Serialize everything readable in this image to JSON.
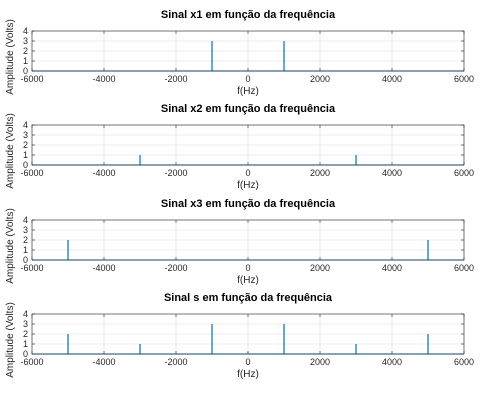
{
  "chart_data": [
    {
      "type": "stem",
      "title": "Sinal x1 em função da frequência",
      "xlabel": "f(Hz)",
      "ylabel": "Amplitude (Volts)",
      "xlim": [
        -6000,
        6000
      ],
      "ylim": [
        0,
        4
      ],
      "xticks": [
        "-6000",
        "-4000",
        "-2000",
        "0",
        "2000",
        "4000",
        "6000"
      ],
      "yticks": [
        "0",
        "1",
        "2",
        "3",
        "4"
      ],
      "grid": true,
      "color": "#0072bd",
      "x": [
        -1000,
        1000
      ],
      "values": [
        3,
        3
      ]
    },
    {
      "type": "stem",
      "title": "Sinal x2 em função da frequência",
      "xlabel": "f(Hz)",
      "ylabel": "Amplitude (Volts)",
      "xlim": [
        -6000,
        6000
      ],
      "ylim": [
        0,
        4
      ],
      "xticks": [
        "-6000",
        "-4000",
        "-2000",
        "0",
        "2000",
        "4000",
        "6000"
      ],
      "yticks": [
        "0",
        "1",
        "2",
        "3",
        "4"
      ],
      "grid": true,
      "color": "#0072bd",
      "x": [
        -3000,
        3000
      ],
      "values": [
        1,
        1
      ]
    },
    {
      "type": "stem",
      "title": "Sinal x3 em função da frequência",
      "xlabel": "f(Hz)",
      "ylabel": "Amplitude (Volts)",
      "xlim": [
        -6000,
        6000
      ],
      "ylim": [
        0,
        4
      ],
      "xticks": [
        "-6000",
        "-4000",
        "-2000",
        "0",
        "2000",
        "4000",
        "6000"
      ],
      "yticks": [
        "0",
        "1",
        "2",
        "3",
        "4"
      ],
      "grid": true,
      "color": "#0072bd",
      "x": [
        -5000,
        5000
      ],
      "values": [
        2,
        2
      ]
    },
    {
      "type": "stem",
      "title": "Sinal s em função da frequência",
      "xlabel": "f(Hz)",
      "ylabel": "Amplitude (Volts)",
      "xlim": [
        -6000,
        6000
      ],
      "ylim": [
        0,
        4
      ],
      "xticks": [
        "-6000",
        "-4000",
        "-2000",
        "0",
        "2000",
        "4000",
        "6000"
      ],
      "yticks": [
        "0",
        "1",
        "2",
        "3",
        "4"
      ],
      "grid": true,
      "color": "#0072bd",
      "x": [
        -5000,
        -3000,
        -1000,
        1000,
        3000,
        5000
      ],
      "values": [
        2,
        1,
        3,
        3,
        1,
        2
      ]
    }
  ]
}
